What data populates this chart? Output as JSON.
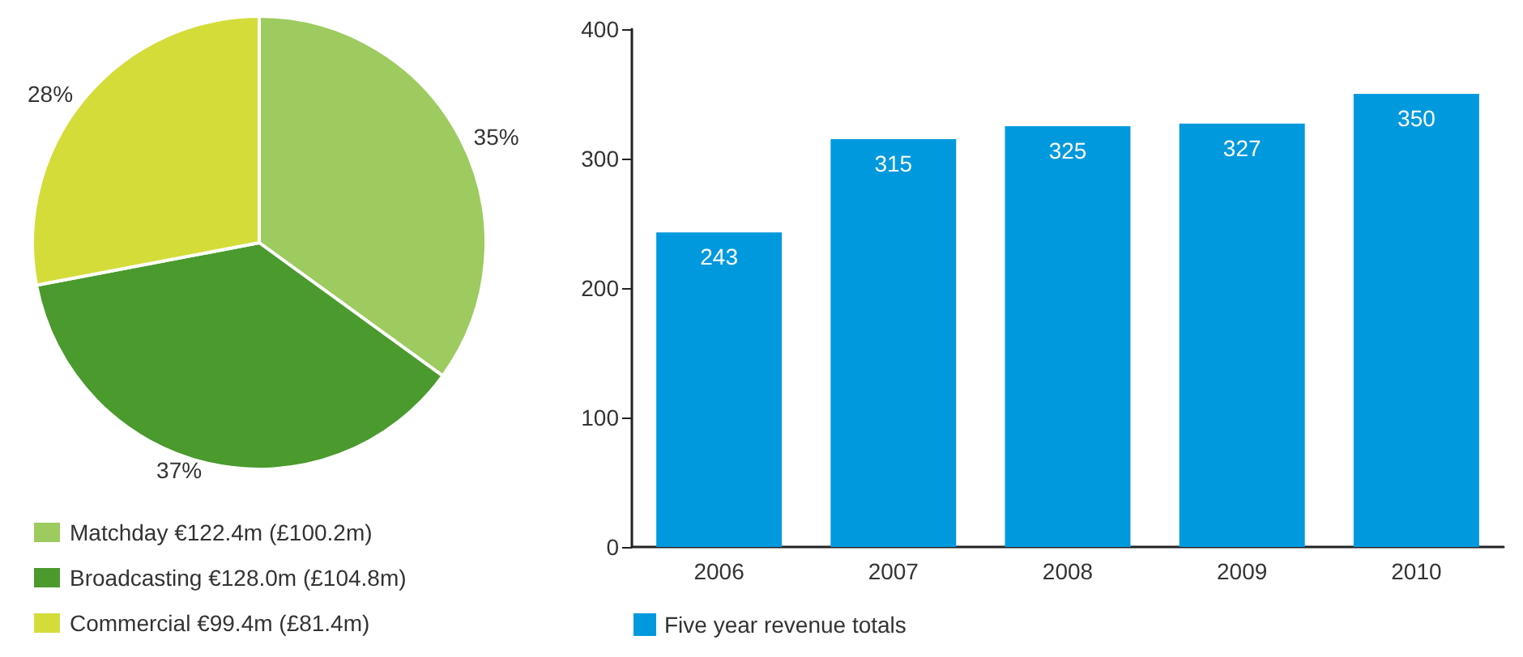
{
  "chart_data": [
    {
      "type": "pie",
      "categories": [
        "Matchday €122.4m (£100.2m)",
        "Broadcasting €128.0m (£104.8m)",
        "Commercial €99.4m (£81.4m)"
      ],
      "values": [
        35,
        37,
        28
      ],
      "colors": [
        "#9dcb5f",
        "#4a9a2e",
        "#d4dc3a"
      ],
      "value_labels": [
        "35%",
        "37%",
        "28%"
      ],
      "legend": "bottom left"
    },
    {
      "type": "bar",
      "categories": [
        "2006",
        "2007",
        "2008",
        "2009",
        "2010"
      ],
      "series": [
        {
          "name": "Five year revenue totals",
          "color": "#0099dd",
          "values": [
            243,
            315,
            325,
            327,
            350
          ]
        }
      ],
      "ylim": [
        0,
        400
      ],
      "yticks": [
        0,
        100,
        200,
        300,
        400
      ],
      "data_labels": true,
      "grid": false,
      "legend": "bottom left"
    }
  ]
}
